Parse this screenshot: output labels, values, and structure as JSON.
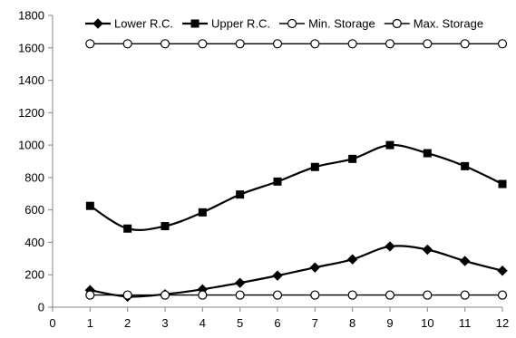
{
  "chart_data": {
    "type": "line",
    "title": "",
    "xlabel": "",
    "ylabel": "",
    "xlim": [
      0,
      12
    ],
    "ylim": [
      0,
      1800
    ],
    "x_ticks": [
      0,
      1,
      2,
      3,
      4,
      5,
      6,
      7,
      8,
      9,
      10,
      11,
      12
    ],
    "y_ticks": [
      0,
      200,
      400,
      600,
      800,
      1000,
      1200,
      1400,
      1600,
      1800
    ],
    "grid": false,
    "legend_position": "top",
    "x": [
      1,
      2,
      3,
      4,
      5,
      6,
      7,
      8,
      9,
      10,
      11,
      12
    ],
    "series": [
      {
        "name": "Lower R.C.",
        "marker": "diamond",
        "smooth": true,
        "color": "#000000",
        "values": [
          105,
          65,
          80,
          110,
          150,
          195,
          245,
          295,
          375,
          355,
          285,
          225
        ]
      },
      {
        "name": "Upper R.C.",
        "marker": "square",
        "smooth": true,
        "color": "#000000",
        "values": [
          625,
          485,
          500,
          585,
          695,
          775,
          865,
          915,
          1000,
          950,
          870,
          760
        ]
      },
      {
        "name": "Min. Storage",
        "marker": "open-circle",
        "smooth": false,
        "color": "#000000",
        "values": [
          75,
          75,
          75,
          75,
          75,
          75,
          75,
          75,
          75,
          75,
          75,
          75
        ]
      },
      {
        "name": "Max. Storage",
        "marker": "open-circle",
        "smooth": false,
        "color": "#000000",
        "values": [
          1625,
          1625,
          1625,
          1625,
          1625,
          1625,
          1625,
          1625,
          1625,
          1625,
          1625,
          1625
        ]
      }
    ]
  }
}
